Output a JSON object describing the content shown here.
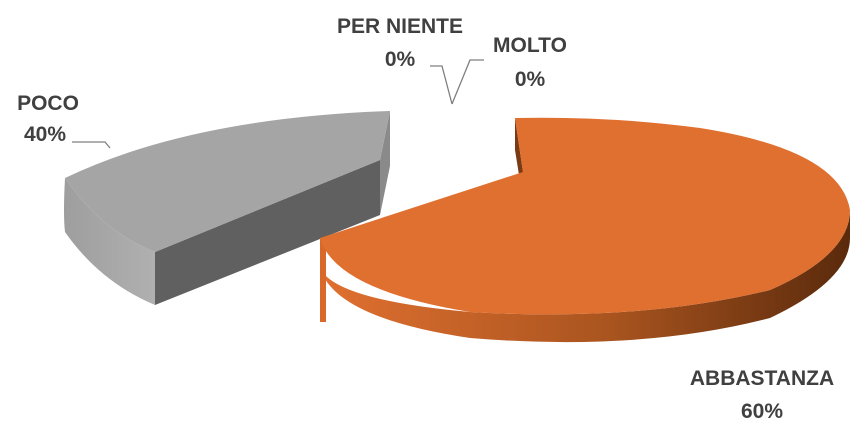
{
  "chart_data": {
    "type": "pie",
    "style": "3d-exploded",
    "legend": "none",
    "categories": [
      "ABBASTANZA",
      "POCO",
      "PER NIENTE",
      "MOLTO"
    ],
    "values": [
      60,
      40,
      0,
      0
    ],
    "value_labels": [
      "60%",
      "40%",
      "0%",
      "0%"
    ],
    "colors": [
      "#E07030",
      "#A5A5A5",
      "#4472C4",
      "#FFC000"
    ]
  }
}
